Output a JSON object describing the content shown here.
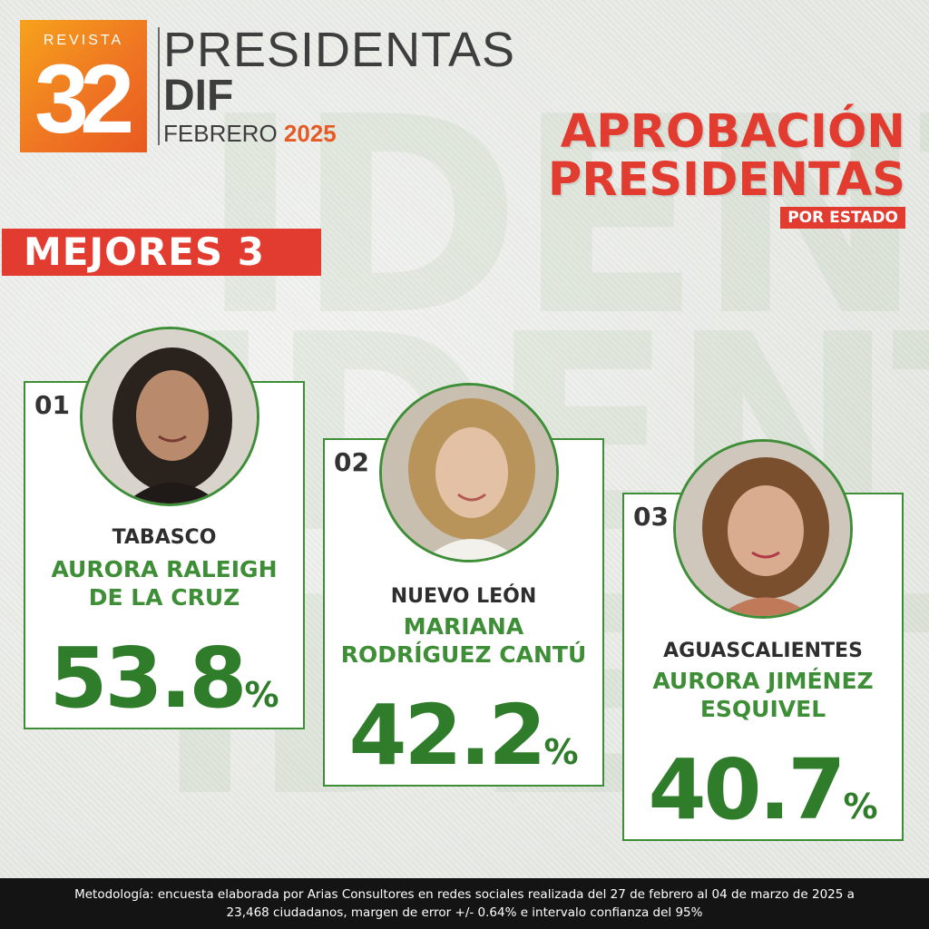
{
  "logo": {
    "revista": "REVISTA",
    "number": "32"
  },
  "header": {
    "line1": "PRESIDENTAS",
    "line2": "DIF",
    "month": "FEBRERO",
    "year": "2025"
  },
  "title": {
    "line1": "APROBACIÓN",
    "line2": "PRESIDENTAS",
    "subtitle": "POR ESTADO"
  },
  "ribbon": "MEJORES 3",
  "background_text": [
    "IDENT",
    "IDENT",
    "IDENT"
  ],
  "cards": [
    {
      "rank": "01",
      "state": "TABASCO",
      "name": "AURORA RALEIGH DE LA CRUZ",
      "value": "53.8",
      "unit": "%"
    },
    {
      "rank": "02",
      "state": "NUEVO LEÓN",
      "name": "MARIANA RODRÍGUEZ CANTÚ",
      "value": "42.2",
      "unit": "%"
    },
    {
      "rank": "03",
      "state": "AGUASCALIENTES",
      "name": "AURORA JIMÉNEZ ESQUIVEL",
      "value": "40.7",
      "unit": "%"
    }
  ],
  "footer": {
    "line1": "Metodología: encuesta elaborada por Arias Consultores en redes sociales realizada del 27 de febrero al 04 de marzo de 2025 a",
    "line2": "23,468 ciudadanos, margen de error +/- 0.64% e intervalo confianza del 95%"
  },
  "colors": {
    "accent_red": "#e23b30",
    "accent_green": "#3e8e37",
    "logo_orange": "#ef7622"
  }
}
